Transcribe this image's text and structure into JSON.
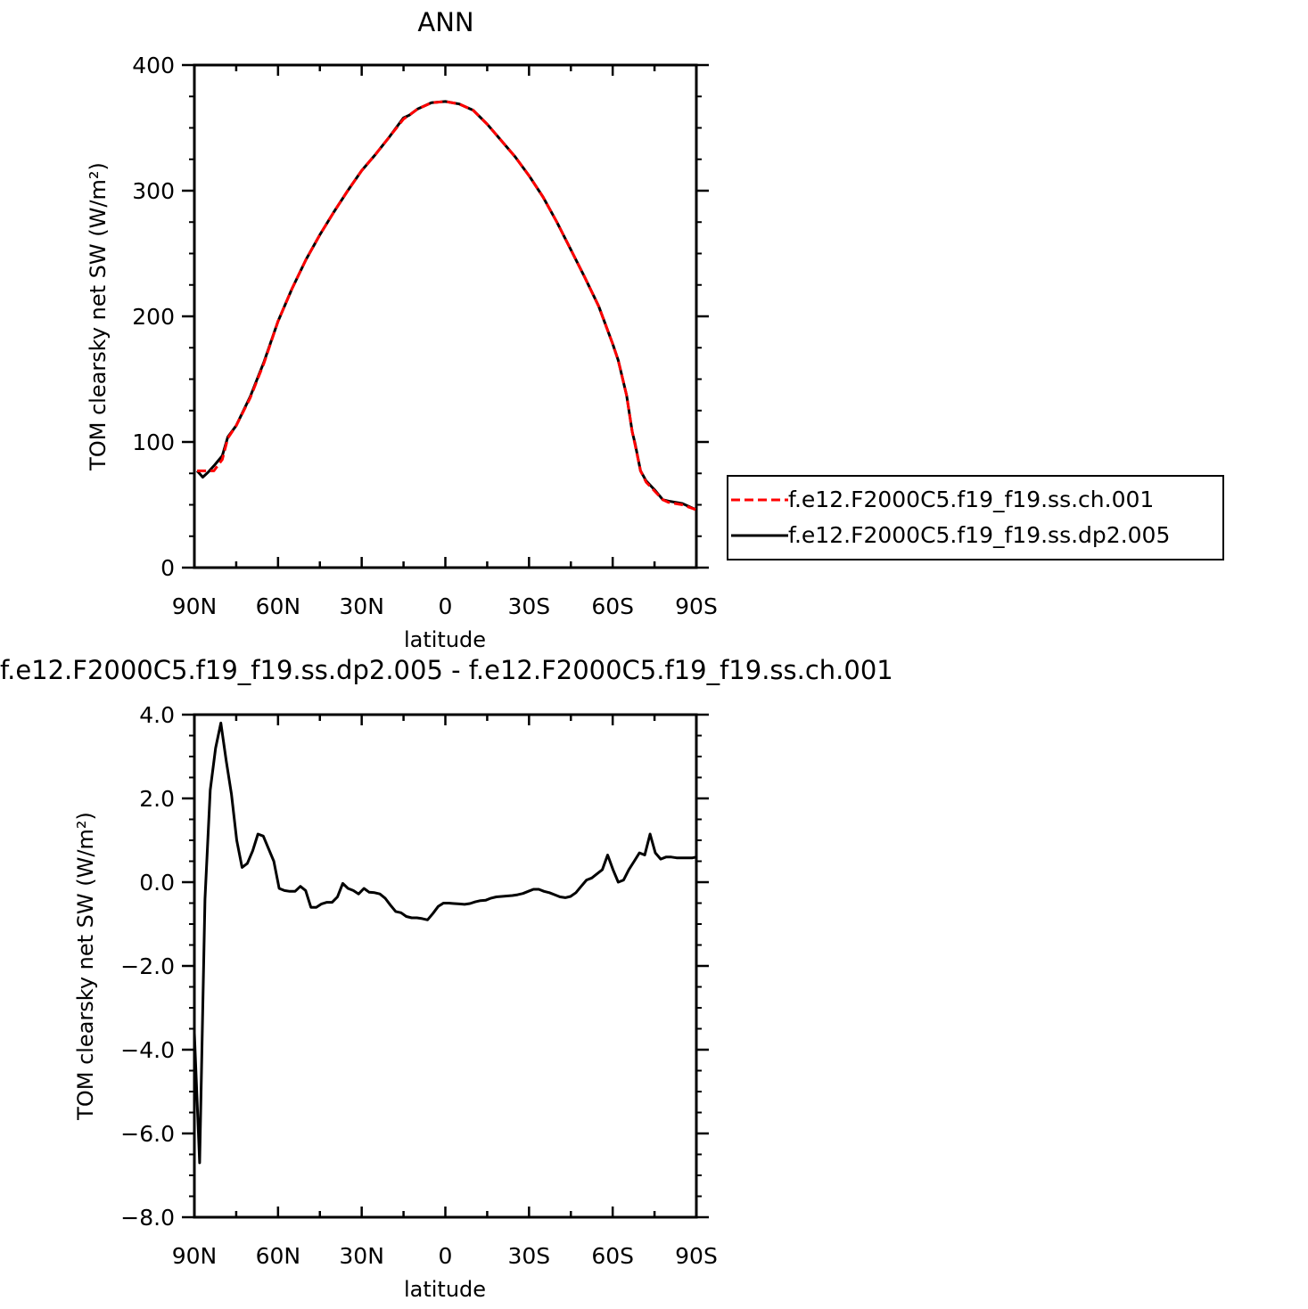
{
  "chart_data": [
    {
      "type": "line",
      "title": "ANN",
      "xlabel": "latitude",
      "ylabel": "TOM clearsky net SW (W/m²)",
      "xlim": [
        90,
        -90
      ],
      "ylim": [
        0,
        400
      ],
      "yticks": [
        0,
        100,
        200,
        300,
        400
      ],
      "ytick_labels": [
        "0",
        "100",
        "200",
        "300",
        "400"
      ],
      "xticks": [
        90,
        60,
        30,
        0,
        -30,
        -60,
        -90
      ],
      "xtick_labels": [
        "90N",
        "60N",
        "30N",
        "0",
        "30S",
        "60S",
        "90S"
      ],
      "grid": false,
      "legend_position": "right",
      "series": [
        {
          "name": "f.e12.F2000C5.f19_f19.ss.ch.001",
          "color": "#ff0000",
          "dash": "dashed",
          "x": [
            89,
            86,
            83,
            80,
            78,
            75,
            70,
            65,
            60,
            55,
            50,
            45,
            40,
            35,
            30,
            25,
            20,
            15,
            13,
            10,
            5,
            0,
            -5,
            -10,
            -15,
            -20,
            -25,
            -30,
            -35,
            -40,
            -45,
            -50,
            -55,
            -60,
            -62,
            -65,
            -67,
            -68,
            -70,
            -72,
            -75,
            -78,
            -80,
            -85,
            -90
          ],
          "y": [
            77,
            77,
            77,
            86,
            103,
            113,
            135,
            163,
            196,
            222,
            245,
            265,
            283,
            300,
            316,
            329,
            343,
            357,
            360,
            365,
            370,
            371,
            369,
            364,
            353,
            340,
            327,
            312,
            295,
            275,
            253,
            231,
            208,
            178,
            165,
            137,
            108,
            98,
            77,
            68,
            61,
            54,
            52,
            50,
            46
          ]
        },
        {
          "name": "f.e12.F2000C5.f19_f19.ss.dp2.005",
          "color": "#000000",
          "dash": "solid",
          "x": [
            89,
            87,
            85,
            83,
            80,
            78,
            75,
            70,
            65,
            60,
            55,
            50,
            45,
            40,
            35,
            30,
            25,
            20,
            15,
            13,
            10,
            5,
            0,
            -5,
            -10,
            -15,
            -20,
            -25,
            -30,
            -35,
            -40,
            -45,
            -50,
            -55,
            -60,
            -62,
            -65,
            -67,
            -68,
            -70,
            -72,
            -75,
            -78,
            -80,
            -85,
            -90
          ],
          "y": [
            77,
            72,
            76,
            81,
            89,
            104,
            113,
            136,
            164,
            196,
            222,
            245,
            265,
            283,
            300,
            316,
            329,
            343,
            358,
            360,
            365,
            370,
            371,
            369,
            364,
            353,
            340,
            327,
            312,
            295,
            275,
            253,
            231,
            208,
            178,
            165,
            137,
            108,
            99,
            77,
            69,
            62,
            54,
            53,
            51,
            46
          ]
        }
      ]
    },
    {
      "type": "line",
      "title": "f.e12.F2000C5.f19_f19.ss.dp2.005 - f.e12.F2000C5.f19_f19.ss.ch.001",
      "xlabel": "latitude",
      "ylabel": "TOM clearsky net SW (W/m²)",
      "xlim": [
        90,
        -90
      ],
      "ylim": [
        -8,
        4
      ],
      "yticks": [
        -8,
        -6,
        -4,
        -2,
        0,
        2,
        4
      ],
      "ytick_labels": [
        "−8.0",
        "−6.0",
        "−4.0",
        "−2.0",
        "0.0",
        "2.0",
        "4.0"
      ],
      "xticks": [
        90,
        60,
        30,
        0,
        -30,
        -60,
        -90
      ],
      "xtick_labels": [
        "90N",
        "60N",
        "30N",
        "0",
        "30S",
        "60S",
        "90S"
      ],
      "grid": false,
      "series": [
        {
          "color": "#000000",
          "dash": "solid",
          "x": [
            90,
            88.1,
            86.2,
            84.3,
            82.4,
            80.5,
            78.6,
            76.7,
            74.8,
            72.9,
            71,
            69.1,
            67.2,
            65.3,
            63.4,
            61.5,
            59.6,
            57.7,
            55.8,
            53.9,
            52,
            50.1,
            48.2,
            46.3,
            44.4,
            42.5,
            40.6,
            38.7,
            36.8,
            34.9,
            33,
            31.1,
            29.2,
            27.3,
            25.4,
            23.5,
            21.6,
            19.7,
            17.8,
            15.9,
            14,
            12.1,
            10.2,
            8.3,
            6.4,
            4.5,
            2.6,
            0.7,
            -1.2,
            -3.1,
            -5,
            -6.9,
            -8.8,
            -10.7,
            -12.6,
            -14.5,
            -16.4,
            -18.3,
            -20.2,
            -22.1,
            -24,
            -25.9,
            -27.8,
            -29.7,
            -31.6,
            -33.5,
            -35.4,
            -37.3,
            -39.2,
            -41.1,
            -43,
            -44.9,
            -46.8,
            -48.7,
            -50.6,
            -52.5,
            -54.4,
            -56.3,
            -58.2,
            -60.1,
            -62,
            -63.9,
            -65.8,
            -67.7,
            -69.6,
            -71.5,
            -73.4,
            -75.3,
            -77.2,
            -79.1,
            -81,
            -82.9,
            -84.8,
            -86.7,
            -88.6,
            -90
          ],
          "y": [
            -3.6,
            -6.7,
            -0.4,
            2.2,
            3.2,
            3.8,
            2.9,
            2.1,
            1.0,
            0.35,
            0.45,
            0.75,
            1.15,
            1.1,
            0.8,
            0.5,
            -0.15,
            -0.2,
            -0.22,
            -0.22,
            -0.1,
            -0.2,
            -0.6,
            -0.6,
            -0.52,
            -0.48,
            -0.48,
            -0.35,
            -0.03,
            -0.15,
            -0.2,
            -0.28,
            -0.15,
            -0.24,
            -0.25,
            -0.28,
            -0.38,
            -0.55,
            -0.7,
            -0.73,
            -0.82,
            -0.85,
            -0.85,
            -0.87,
            -0.9,
            -0.75,
            -0.58,
            -0.5,
            -0.5,
            -0.51,
            -0.52,
            -0.53,
            -0.51,
            -0.47,
            -0.44,
            -0.43,
            -0.38,
            -0.35,
            -0.34,
            -0.33,
            -0.32,
            -0.3,
            -0.27,
            -0.22,
            -0.17,
            -0.17,
            -0.22,
            -0.25,
            -0.3,
            -0.35,
            -0.37,
            -0.34,
            -0.25,
            -0.1,
            0.05,
            0.1,
            0.2,
            0.3,
            0.65,
            0.3,
            0.0,
            0.05,
            0.3,
            0.5,
            0.7,
            0.65,
            1.15,
            0.7,
            0.55,
            0.6,
            0.6,
            0.58,
            0.58,
            0.58,
            0.58,
            0.6
          ]
        }
      ]
    }
  ]
}
